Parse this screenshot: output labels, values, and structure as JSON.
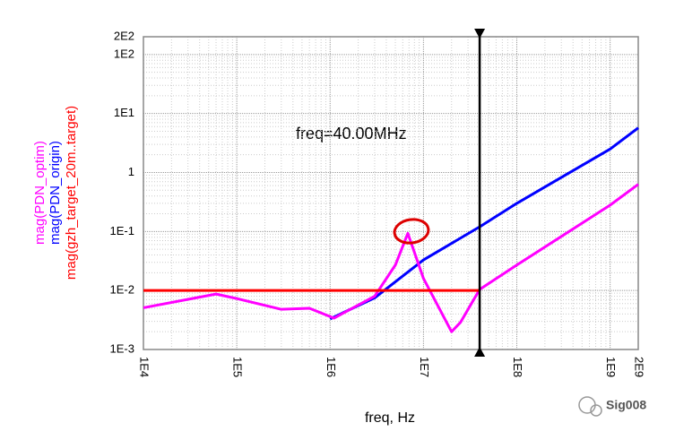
{
  "chart_data": {
    "type": "line",
    "xlabel": "freq, Hz",
    "xscale": "log",
    "yscale": "log",
    "grid": true,
    "xlim": [
      10000,
      2000000000
    ],
    "xticks": [
      {
        "value": 10000,
        "label": "1E4"
      },
      {
        "value": 100000,
        "label": "1E5"
      },
      {
        "value": 1000000,
        "label": "1E6"
      },
      {
        "value": 10000000,
        "label": "1E7"
      },
      {
        "value": 100000000,
        "label": "1E8"
      },
      {
        "value": 1000000000,
        "label": "1E9"
      },
      {
        "value": 2000000000,
        "label": "2E9"
      }
    ],
    "ylim": [
      0.001,
      200
    ],
    "yticks": [
      {
        "value": 0.001,
        "label": "1E-3"
      },
      {
        "value": 0.01,
        "label": "1E-2"
      },
      {
        "value": 0.1,
        "label": "1E-1"
      },
      1,
      {
        "value": 10,
        "label": "1E1"
      },
      {
        "value": 100,
        "label": "1E2"
      },
      {
        "value": 200,
        "label": "2E2"
      }
    ],
    "series": [
      {
        "name": "mag(PDN_optim)",
        "color": "#ff00ff",
        "x": [
          10000,
          60000,
          100000,
          300000,
          600000,
          1100000,
          3000000,
          5000000,
          6800000,
          10000000,
          20000000,
          25000000,
          40000000,
          100000000,
          1000000000,
          2000000000
        ],
        "values": [
          0.0051,
          0.0087,
          0.0073,
          0.0048,
          0.005,
          0.0034,
          0.008,
          0.027,
          0.093,
          0.016,
          0.002,
          0.0029,
          0.0104,
          0.027,
          0.28,
          0.63
        ]
      },
      {
        "name": "mag(PDN_origin)",
        "color": "#0000ff",
        "x": [
          1000000,
          3000000,
          10000000,
          40000000,
          100000000,
          1000000000,
          2000000000
        ],
        "values": [
          0.0033,
          0.0075,
          0.033,
          0.12,
          0.3,
          2.5,
          5.7
        ]
      },
      {
        "name": "mag(gzh_target_20m..target)",
        "color": "#ff0000",
        "x": [
          10000,
          40000000
        ],
        "values": [
          0.01,
          0.01
        ]
      }
    ],
    "marker": {
      "x": 40000000,
      "label": "freq=40.00MHz"
    },
    "watermark": "Sig008"
  }
}
